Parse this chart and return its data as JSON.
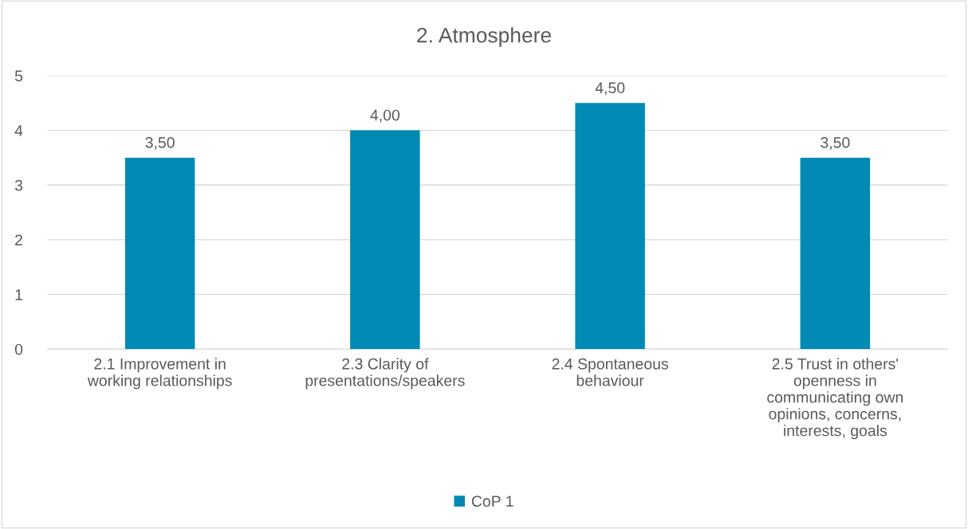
{
  "chart_data": {
    "type": "bar",
    "title": "2. Atmosphere",
    "categories": [
      "2.1 Improvement in\nworking relationships",
      "2.3 Clarity of\npresentations/speakers",
      "2.4 Spontaneous\nbehaviour",
      "2.5 Trust in others'\nopenness in\ncommunicating own\nopinions, concerns,\ninterests, goals"
    ],
    "series": [
      {
        "name": "CoP 1",
        "color": "#008ab4",
        "values": [
          3.5,
          4.0,
          4.5,
          3.5
        ],
        "value_labels": [
          "3,50",
          "4,00",
          "4,50",
          "3,50"
        ]
      }
    ],
    "ylim": [
      0,
      5
    ],
    "yticks": [
      0,
      1,
      2,
      3,
      4,
      5
    ],
    "grid": "y",
    "legend": "bottom"
  }
}
